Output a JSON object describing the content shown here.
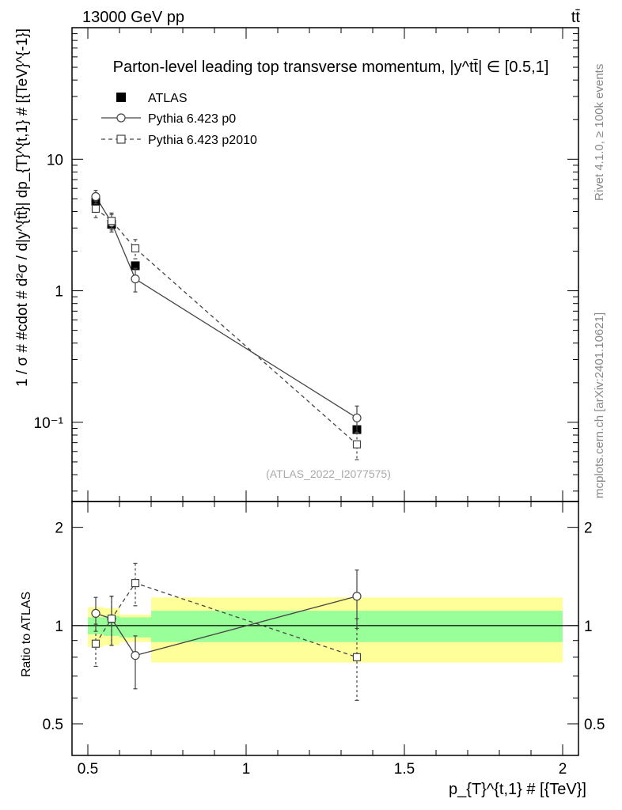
{
  "header": {
    "left": "13000 GeV pp",
    "right": "tt̄"
  },
  "side_labels": {
    "rivet": "Rivet 4.1.0, ≥ 100k events",
    "mcplots": "mcplots.cern.ch [arXiv:2401.10621]"
  },
  "chart_data": {
    "type": "line",
    "title": "Parton-level leading top transverse momentum, |y^tt̄| ∈ [0.5,1]",
    "xlabel": "p_{T}^{t,1} # [{TeV}]",
    "ylabel": "1 / σ # #cdot # d²σ / d|y^{tt̄}| dp_{T}^{t,1} # [{TeV}^{-1}]",
    "ratio_ylabel": "Ratio to ATLAS",
    "analysis_id": "(ATLAS_2022_I2077575)",
    "xlim": [
      0.45,
      2.05
    ],
    "ylim": [
      0.025,
      100
    ],
    "yscale": "log",
    "ratio_ylim": [
      0.4,
      2.4
    ],
    "x_ticks": [
      {
        "value": 0.5,
        "label": "0.5"
      },
      {
        "value": 1.0,
        "label": "1"
      },
      {
        "value": 1.5,
        "label": "1.5"
      },
      {
        "value": 2.0,
        "label": "2"
      }
    ],
    "main_y_ticks": [
      {
        "value": 10,
        "label": "10"
      },
      {
        "value": 1,
        "label": "1"
      },
      {
        "value": 0.1,
        "label": "10⁻¹"
      }
    ],
    "ratio_y_ticks": [
      {
        "value": 0.5,
        "label": "0.5"
      },
      {
        "value": 1,
        "label": "1"
      },
      {
        "value": 2,
        "label": "2"
      }
    ],
    "series": [
      {
        "name": "ATLAS",
        "marker": "filled-square",
        "x": [
          0.525,
          0.575,
          0.65,
          1.35
        ],
        "y": [
          4.8,
          3.2,
          1.55,
          0.088
        ],
        "ratio": [
          1.0,
          1.0,
          1.0,
          1.0
        ]
      },
      {
        "name": "Pythia 6.423 p0",
        "marker": "open-circle",
        "line": "solid",
        "x": [
          0.525,
          0.575,
          0.65,
          1.35
        ],
        "y": [
          5.2,
          3.3,
          1.23,
          0.108
        ],
        "y_err_up": [
          0.6,
          0.5,
          0.25,
          0.025
        ],
        "y_err_down": [
          0.6,
          0.5,
          0.25,
          0.025
        ],
        "ratio": [
          1.09,
          1.05,
          0.81,
          1.23
        ],
        "ratio_err_up": [
          0.13,
          0.18,
          0.12,
          0.25
        ],
        "ratio_err_down": [
          0.13,
          0.18,
          0.17,
          0.25
        ]
      },
      {
        "name": "Pythia 6.423 p2010",
        "marker": "open-square",
        "line": "dashed",
        "x": [
          0.525,
          0.575,
          0.65,
          1.35
        ],
        "y": [
          4.2,
          3.4,
          2.1,
          0.068
        ],
        "y_err_up": [
          0.6,
          0.5,
          0.35,
          0.016
        ],
        "y_err_down": [
          0.6,
          0.5,
          0.35,
          0.016
        ],
        "ratio": [
          0.88,
          1.05,
          1.35,
          0.8
        ],
        "ratio_err_up": [
          0.13,
          0.18,
          0.2,
          0.25
        ],
        "ratio_err_down": [
          0.13,
          0.18,
          0.2,
          0.21
        ]
      }
    ],
    "uncertainty_bands": [
      {
        "x_low": 0.5,
        "x_high": 0.55,
        "stat_low": 0.94,
        "stat_high": 1.06,
        "total_low": 0.86,
        "total_high": 1.14
      },
      {
        "x_low": 0.55,
        "x_high": 0.6,
        "stat_low": 0.93,
        "stat_high": 1.07,
        "total_low": 0.87,
        "total_high": 1.13
      },
      {
        "x_low": 0.6,
        "x_high": 0.7,
        "stat_low": 0.92,
        "stat_high": 1.06,
        "total_low": 0.89,
        "total_high": 1.08
      },
      {
        "x_low": 0.7,
        "x_high": 2.0,
        "stat_low": 0.89,
        "stat_high": 1.11,
        "total_low": 0.77,
        "total_high": 1.22
      }
    ]
  }
}
